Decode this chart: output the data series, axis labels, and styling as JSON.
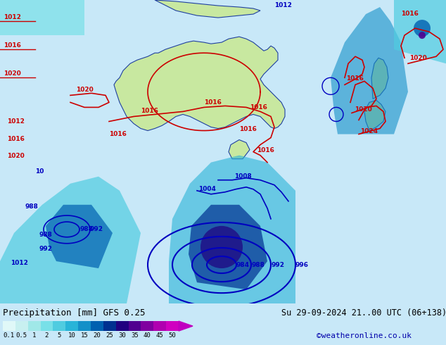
{
  "title_left": "Precipitation [mm] GFS 0.25",
  "title_right": "Su 29-09-2024 21..00 UTC (06+138)",
  "credit": "©weatheronline.co.uk",
  "colorbar_values": [
    0.1,
    0.5,
    1,
    2,
    5,
    10,
    15,
    20,
    25,
    30,
    35,
    40,
    45,
    50
  ],
  "colorbar_colors": [
    "#e0f8f8",
    "#c8f0f0",
    "#a0e8e8",
    "#78e0e8",
    "#50cce0",
    "#28b4d8",
    "#1490c8",
    "#0060b0",
    "#003090",
    "#200080",
    "#500090",
    "#8000a0",
    "#b000b0",
    "#d000c0"
  ],
  "bg_color": "#c8e8f8",
  "map_bg": "#d0d0d0",
  "land_color": "#c8e8a0",
  "ocean_color": "#c8e8f8",
  "fig_width": 6.34,
  "fig_height": 4.9
}
